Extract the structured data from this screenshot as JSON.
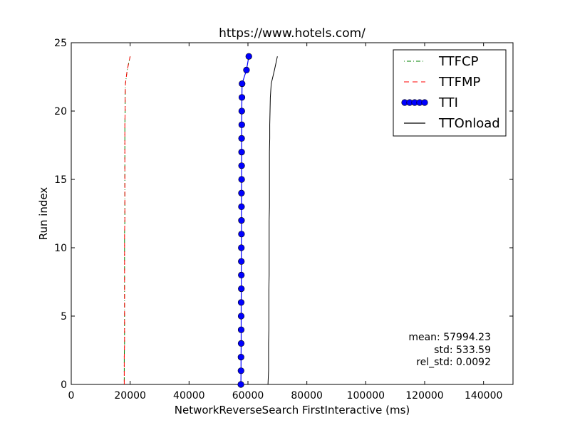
{
  "chart_data": {
    "type": "line",
    "title": "https://www.hotels.com/",
    "xlabel": "NetworkReverseSearch FirstInteractive (ms)",
    "ylabel": "Run index",
    "xlim": [
      0,
      150000
    ],
    "ylim": [
      0,
      25
    ],
    "xticks": [
      0,
      20000,
      40000,
      60000,
      80000,
      100000,
      120000,
      140000
    ],
    "xtick_labels": [
      "0",
      "20000",
      "40000",
      "60000",
      "80000",
      "100000",
      "120000",
      "140000"
    ],
    "yticks": [
      0,
      5,
      10,
      15,
      20,
      25
    ],
    "ytick_labels": [
      "0",
      "5",
      "10",
      "15",
      "20",
      "25"
    ],
    "grid": false,
    "legend_position": "top-right",
    "series": [
      {
        "name": "TTFCP",
        "color": "#008000",
        "style": "dashdot",
        "marker": "none",
        "y": [
          0,
          1,
          2,
          3,
          4,
          5,
          6,
          7,
          8,
          9,
          10,
          11,
          12,
          13,
          14,
          15,
          16,
          17,
          18,
          19,
          20,
          21,
          22,
          23,
          24
        ],
        "x": [
          18000,
          18000,
          18000,
          18100,
          18100,
          18100,
          18100,
          18100,
          18100,
          18100,
          18100,
          18100,
          18200,
          18200,
          18200,
          18200,
          18200,
          18200,
          18200,
          18200,
          18300,
          18300,
          18400,
          19000,
          20000
        ]
      },
      {
        "name": "TTFMP",
        "color": "#ff0000",
        "style": "dashed",
        "marker": "none",
        "y": [
          0,
          1,
          2,
          3,
          4,
          5,
          6,
          7,
          8,
          9,
          10,
          11,
          12,
          13,
          14,
          15,
          16,
          17,
          18,
          19,
          20,
          21,
          22,
          23,
          24
        ],
        "x": [
          18000,
          18000,
          18000,
          18100,
          18100,
          18100,
          18100,
          18100,
          18100,
          18100,
          18100,
          18100,
          18200,
          18200,
          18200,
          18200,
          18200,
          18200,
          18200,
          18200,
          18300,
          18300,
          18400,
          19000,
          20000
        ]
      },
      {
        "name": "TTI",
        "color": "#0000ff",
        "style": "solid",
        "marker": "circle",
        "y": [
          0,
          1,
          2,
          3,
          4,
          5,
          6,
          7,
          8,
          9,
          10,
          11,
          12,
          13,
          14,
          15,
          16,
          17,
          18,
          19,
          20,
          21,
          22,
          23,
          24
        ],
        "x": [
          57600,
          57650,
          57650,
          57700,
          57700,
          57700,
          57700,
          57750,
          57750,
          57750,
          57750,
          57800,
          57800,
          57800,
          57800,
          57850,
          57850,
          57850,
          57850,
          57900,
          57900,
          57950,
          58000,
          59500,
          60300
        ]
      },
      {
        "name": "TTOnload",
        "color": "#000000",
        "style": "solid",
        "marker": "none",
        "y": [
          0,
          1,
          2,
          3,
          4,
          5,
          6,
          7,
          8,
          9,
          10,
          11,
          12,
          13,
          14,
          15,
          16,
          17,
          18,
          19,
          20,
          21,
          22,
          23,
          24
        ],
        "x": [
          66800,
          67000,
          67000,
          67000,
          67100,
          67100,
          67100,
          67100,
          67200,
          67200,
          67200,
          67200,
          67200,
          67300,
          67300,
          67300,
          67300,
          67300,
          67400,
          67400,
          67500,
          67600,
          67900,
          69000,
          70000
        ]
      }
    ],
    "annotations": [
      "mean: 57994.23",
      "std: 533.59",
      "rel_std: 0.0092"
    ]
  }
}
